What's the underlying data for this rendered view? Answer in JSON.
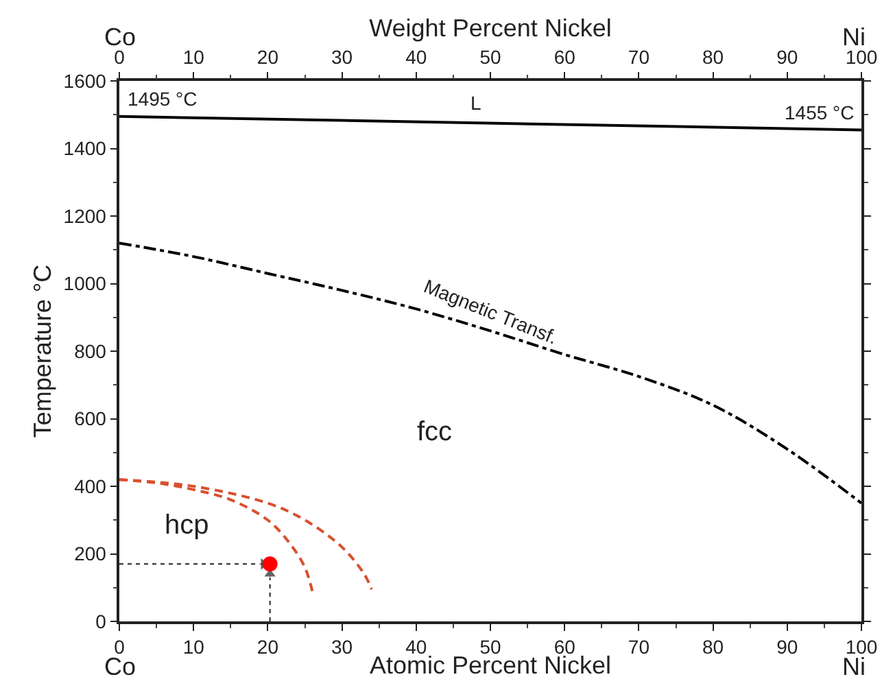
{
  "chart_data": {
    "type": "line",
    "xlabel": "Atomic Percent Nickel",
    "x2label": "Weight Percent Nickel",
    "ylabel": "Temperature °C",
    "xlim": [
      0,
      100
    ],
    "xticks": [
      0,
      10,
      20,
      30,
      40,
      50,
      60,
      70,
      80,
      90,
      100
    ],
    "x2lim": [
      0,
      100
    ],
    "x2ticks": [
      0,
      10,
      20,
      30,
      40,
      50,
      60,
      70,
      80,
      90,
      100
    ],
    "ylim": [
      0,
      1600
    ],
    "yticks": [
      0,
      200,
      400,
      600,
      800,
      1000,
      1200,
      1400,
      1600
    ],
    "series": [
      {
        "color": "#000000",
        "line_style": "solid",
        "marker": "none",
        "x": [
          0,
          100
        ],
        "values": [
          1495,
          1455
        ]
      },
      {
        "color": "#000000",
        "line_style": "dashdot",
        "marker": "none",
        "x": [
          0,
          10,
          20,
          30,
          40,
          50,
          60,
          70,
          80,
          90,
          100
        ],
        "values": [
          1120,
          1080,
          1030,
          980,
          925,
          860,
          790,
          725,
          640,
          510,
          350
        ]
      },
      {
        "color": "#d9502f",
        "line_style": "dashed",
        "marker": "none",
        "x": [
          0,
          5,
          10,
          15,
          20,
          23,
          25,
          26
        ],
        "values": [
          420,
          410,
          390,
          360,
          300,
          230,
          160,
          90
        ]
      },
      {
        "color": "#d9502f",
        "line_style": "dashed",
        "marker": "none",
        "x": [
          0,
          10,
          20,
          25,
          30,
          33,
          34
        ],
        "values": [
          420,
          400,
          350,
          300,
          220,
          140,
          95
        ]
      },
      {
        "color": "#222222",
        "line_style": "dotted",
        "marker": "triangle",
        "x": [
          0,
          19.4
        ],
        "values": [
          170,
          170
        ]
      },
      {
        "color": "#222222",
        "line_style": "dotted",
        "marker": "triangle",
        "x": [
          20.3,
          20.3
        ],
        "values": [
          0,
          140
        ]
      },
      {
        "type": "scatter",
        "color": "#ff0000",
        "marker": "circle",
        "x": [
          20.3
        ],
        "values": [
          170
        ]
      }
    ],
    "annotations": [
      {
        "text": "1495 °C",
        "x": 0,
        "y": 1495
      },
      {
        "text": "1455 °C",
        "x": 100,
        "y": 1455
      },
      "L",
      {
        "text": "Magnetic Transf.",
        "x": 50,
        "y": 860
      },
      "fcc",
      "hcp",
      "Co",
      "Ni",
      "Co",
      "Ni"
    ]
  }
}
